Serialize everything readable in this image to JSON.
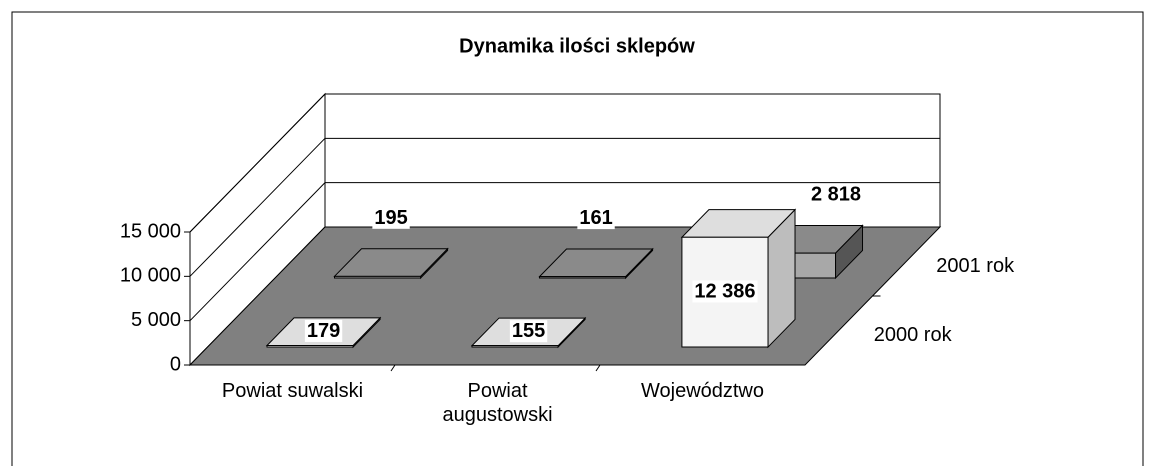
{
  "chart_data": {
    "type": "bar3d",
    "title": "Dynamika ilości sklepów",
    "categories": [
      "Powiat suwalski",
      "Powiat augustowski",
      "Województwo"
    ],
    "series": [
      {
        "name": "2000 rok",
        "color": "#eeeeee",
        "values": [
          179,
          155,
          12386
        ],
        "value_labels": [
          "179",
          "155",
          "12 386"
        ]
      },
      {
        "name": "2001 rok",
        "color": "#9a9a9a",
        "values": [
          195,
          161,
          2818
        ],
        "value_labels": [
          "195",
          "161",
          "2 818"
        ]
      }
    ],
    "ylim": [
      0,
      15000
    ],
    "yticks": [
      0,
      {
        "value": 5000,
        "label": "5 000"
      },
      {
        "value": 10000,
        "label": "10 000"
      },
      {
        "value": 15000,
        "label": "15 000"
      }
    ],
    "grid": true
  }
}
